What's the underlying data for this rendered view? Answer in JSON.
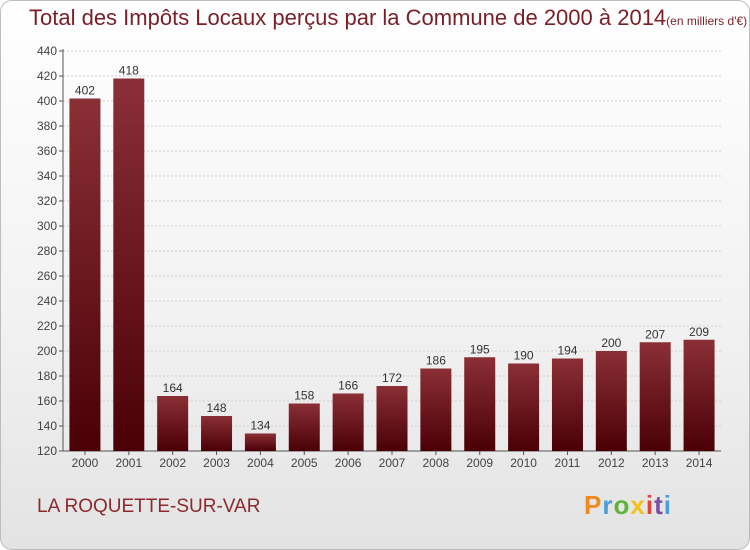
{
  "header": {
    "title": "Total des Impôts Locaux perçus par la Commune de 2000 à 2014",
    "unit": "(en milliers d'€)"
  },
  "footer": {
    "commune": "LA ROQUETTE-SUR-VAR",
    "logo_text": "Proxiti"
  },
  "colors": {
    "bar_top": "#8b2f36",
    "bar_bottom": "#4a0006",
    "title": "#7a1f25",
    "axis": "#555555"
  },
  "chart_data": {
    "type": "bar",
    "categories": [
      "2000",
      "2001",
      "2002",
      "2003",
      "2004",
      "2005",
      "2006",
      "2007",
      "2008",
      "2009",
      "2010",
      "2011",
      "2012",
      "2013",
      "2014"
    ],
    "values": [
      402,
      418,
      164,
      148,
      134,
      158,
      166,
      172,
      186,
      195,
      190,
      194,
      200,
      207,
      209
    ],
    "ylim": [
      120,
      440
    ],
    "yticks": [
      120,
      140,
      160,
      180,
      200,
      220,
      240,
      260,
      280,
      300,
      320,
      340,
      360,
      380,
      400,
      420,
      440
    ],
    "grid": true
  }
}
